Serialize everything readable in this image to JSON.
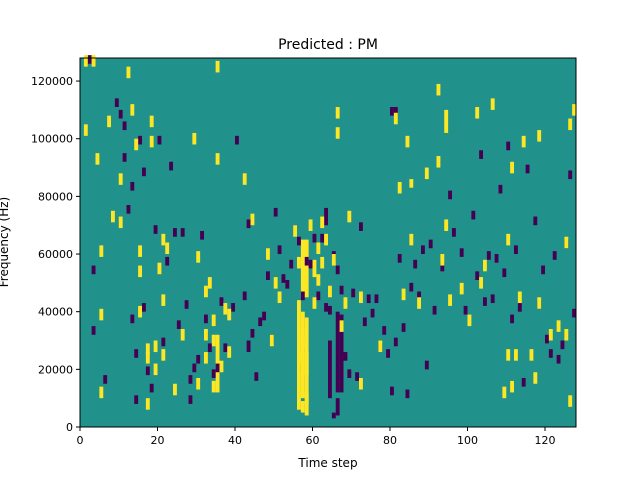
{
  "chart_data": {
    "type": "heatmap",
    "title": "Predicted : PM",
    "xlabel": "Time step",
    "ylabel": "Frequency (Hz)",
    "xlim": [
      0,
      128
    ],
    "ylim": [
      0,
      128000
    ],
    "x_ticks": [
      0,
      20,
      40,
      60,
      80,
      100,
      120
    ],
    "y_ticks": [
      0,
      20000,
      40000,
      60000,
      80000,
      100000,
      120000
    ],
    "x_tick_labels": [
      "0",
      "20",
      "40",
      "60",
      "80",
      "100",
      "120"
    ],
    "y_tick_labels": [
      "0",
      "20000",
      "40000",
      "60000",
      "80000",
      "100000",
      "120000"
    ],
    "background_value": 0,
    "value_colors": {
      "-1": "#440154",
      "0": "#21918c",
      "1": "#fde725"
    },
    "cell_height_hz": 1000,
    "high_cells": [
      [
        1,
        125
      ],
      [
        1,
        101
      ],
      [
        3,
        125
      ],
      [
        4,
        91
      ],
      [
        5,
        59
      ],
      [
        5,
        37
      ],
      [
        5,
        10
      ],
      [
        7,
        104
      ],
      [
        8,
        71
      ],
      [
        10,
        69
      ],
      [
        10,
        84
      ],
      [
        12,
        121
      ],
      [
        13,
        108
      ],
      [
        14,
        96
      ],
      [
        15,
        59
      ],
      [
        15,
        52
      ],
      [
        15,
        38
      ],
      [
        17,
        25
      ],
      [
        17,
        6
      ],
      [
        17,
        22
      ],
      [
        18,
        104
      ],
      [
        18,
        97
      ],
      [
        19,
        26
      ],
      [
        19,
        18
      ],
      [
        20,
        53
      ],
      [
        21,
        23
      ],
      [
        21,
        63
      ],
      [
        21,
        42
      ],
      [
        22,
        60
      ],
      [
        24,
        11
      ],
      [
        26,
        30
      ],
      [
        29,
        98
      ],
      [
        30,
        57
      ],
      [
        30,
        13
      ],
      [
        32,
        22
      ],
      [
        32,
        30
      ],
      [
        32,
        45
      ],
      [
        33,
        48
      ],
      [
        34,
        35
      ],
      [
        34,
        12
      ],
      [
        35,
        123
      ],
      [
        35,
        91
      ],
      [
        36,
        19
      ],
      [
        37,
        39
      ],
      [
        38,
        37
      ],
      [
        38,
        24
      ],
      [
        42,
        84
      ],
      [
        44,
        70
      ],
      [
        48,
        58
      ],
      [
        49,
        28
      ],
      [
        50,
        48
      ],
      [
        51,
        43
      ],
      [
        55,
        66
      ],
      [
        56,
        55
      ],
      [
        56,
        22
      ],
      [
        57,
        5
      ],
      [
        57,
        30
      ],
      [
        57,
        27
      ],
      [
        58,
        18
      ],
      [
        58,
        8
      ],
      [
        58,
        22
      ],
      [
        59,
        68
      ],
      [
        60,
        41
      ],
      [
        61,
        49
      ],
      [
        62,
        55
      ],
      [
        62,
        69
      ],
      [
        63,
        63
      ],
      [
        64,
        45
      ],
      [
        65,
        56
      ],
      [
        66,
        100
      ],
      [
        66,
        107
      ],
      [
        67,
        33
      ],
      [
        68,
        41
      ],
      [
        69,
        71
      ],
      [
        72,
        13
      ],
      [
        72,
        43
      ],
      [
        77,
        26
      ],
      [
        81,
        105
      ],
      [
        82,
        81
      ],
      [
        83,
        44
      ],
      [
        84,
        97
      ],
      [
        85,
        63
      ],
      [
        87,
        41
      ],
      [
        89,
        86
      ],
      [
        92,
        90
      ],
      [
        92,
        115
      ],
      [
        93,
        56
      ],
      [
        94,
        68
      ],
      [
        95,
        42
      ],
      [
        98,
        46
      ],
      [
        100,
        35
      ],
      [
        102,
        107
      ],
      [
        103,
        48
      ],
      [
        104,
        54
      ],
      [
        106,
        110
      ],
      [
        109,
        10
      ],
      [
        110,
        23
      ],
      [
        110,
        63
      ],
      [
        111,
        12
      ],
      [
        111,
        88
      ],
      [
        112,
        23
      ],
      [
        113,
        43
      ],
      [
        114,
        97
      ],
      [
        116,
        23
      ],
      [
        117,
        15
      ],
      [
        118,
        41
      ],
      [
        118,
        99
      ],
      [
        121,
        30
      ],
      [
        123,
        33
      ],
      [
        125,
        30
      ],
      [
        125,
        62
      ],
      [
        126,
        7
      ],
      [
        126,
        103
      ],
      [
        127,
        108
      ]
    ],
    "low_cells": [
      [
        2,
        126
      ],
      [
        3,
        53
      ],
      [
        3,
        32
      ],
      [
        6,
        15
      ],
      [
        9,
        111
      ],
      [
        10,
        107
      ],
      [
        11,
        103
      ],
      [
        11,
        92
      ],
      [
        12,
        74
      ],
      [
        13,
        82
      ],
      [
        13,
        36
      ],
      [
        14,
        8
      ],
      [
        14,
        24
      ],
      [
        15,
        98
      ],
      [
        16,
        87
      ],
      [
        16,
        40
      ],
      [
        17,
        18
      ],
      [
        18,
        12
      ],
      [
        19,
        67
      ],
      [
        20,
        98
      ],
      [
        21,
        28
      ],
      [
        22,
        56
      ],
      [
        23,
        89
      ],
      [
        24,
        66
      ],
      [
        25,
        34
      ],
      [
        26,
        66
      ],
      [
        27,
        41
      ],
      [
        28,
        8
      ],
      [
        28,
        15
      ],
      [
        29,
        19
      ],
      [
        30,
        22
      ],
      [
        31,
        65
      ],
      [
        32,
        36
      ],
      [
        33,
        26
      ],
      [
        34,
        17
      ],
      [
        35,
        19
      ],
      [
        36,
        42
      ],
      [
        37,
        26
      ],
      [
        39,
        40
      ],
      [
        40,
        98
      ],
      [
        42,
        44
      ],
      [
        43,
        69
      ],
      [
        44,
        31
      ],
      [
        45,
        16
      ],
      [
        46,
        35
      ],
      [
        47,
        37
      ],
      [
        48,
        51
      ],
      [
        49,
        29
      ],
      [
        50,
        73
      ],
      [
        51,
        60
      ],
      [
        52,
        50
      ],
      [
        53,
        48
      ],
      [
        54,
        55
      ],
      [
        55,
        67
      ],
      [
        56,
        63
      ],
      [
        57,
        44
      ],
      [
        58,
        56
      ],
      [
        59,
        55
      ],
      [
        60,
        64
      ],
      [
        61,
        44
      ],
      [
        62,
        64
      ],
      [
        63,
        40
      ],
      [
        64,
        39
      ],
      [
        65,
        58
      ],
      [
        66,
        53
      ],
      [
        67,
        46
      ],
      [
        68,
        23
      ],
      [
        69,
        17
      ],
      [
        70,
        45
      ],
      [
        71,
        16
      ],
      [
        72,
        68
      ],
      [
        73,
        35
      ],
      [
        74,
        43
      ],
      [
        75,
        38
      ],
      [
        76,
        43
      ],
      [
        77,
        26
      ],
      [
        78,
        32
      ],
      [
        79,
        24
      ],
      [
        80,
        11
      ],
      [
        81,
        28
      ],
      [
        82,
        57
      ],
      [
        83,
        33
      ],
      [
        84,
        10
      ],
      [
        85,
        47
      ],
      [
        86,
        55
      ],
      [
        87,
        44
      ],
      [
        88,
        60
      ],
      [
        89,
        20
      ],
      [
        90,
        62
      ],
      [
        91,
        39
      ],
      [
        93,
        54
      ],
      [
        95,
        79
      ],
      [
        96,
        66
      ],
      [
        98,
        59
      ],
      [
        99,
        39
      ],
      [
        101,
        72
      ],
      [
        102,
        51
      ],
      [
        103,
        93
      ],
      [
        104,
        42
      ],
      [
        105,
        58
      ],
      [
        106,
        43
      ],
      [
        107,
        57
      ],
      [
        108,
        81
      ],
      [
        109,
        52
      ],
      [
        110,
        96
      ],
      [
        111,
        36
      ],
      [
        112,
        60
      ],
      [
        113,
        40
      ],
      [
        114,
        14
      ],
      [
        115,
        88
      ],
      [
        117,
        70
      ],
      [
        118,
        41
      ],
      [
        119,
        53
      ],
      [
        120,
        29
      ],
      [
        121,
        24
      ],
      [
        122,
        58
      ],
      [
        123,
        22
      ],
      [
        124,
        27
      ],
      [
        125,
        62
      ],
      [
        126,
        86
      ],
      [
        127,
        38
      ]
    ],
    "high_blocks": [
      [
        56,
        57,
        6,
        44
      ],
      [
        57,
        58,
        10,
        40
      ],
      [
        58,
        59,
        4,
        38
      ],
      [
        57,
        59,
        45,
        65
      ],
      [
        60,
        61,
        52,
        58
      ],
      [
        61,
        62,
        60,
        64
      ],
      [
        34,
        35,
        32,
        28
      ],
      [
        35,
        36,
        12,
        32
      ],
      [
        94,
        95,
        102,
        110
      ],
      [
        85,
        86,
        86,
        83
      ]
    ],
    "low_blocks": [
      [
        66,
        67,
        12,
        40
      ],
      [
        67,
        68,
        12,
        33
      ],
      [
        67,
        68,
        34,
        39
      ],
      [
        66,
        67,
        4,
        10
      ],
      [
        56,
        57,
        19,
        25
      ],
      [
        65,
        66,
        3,
        5
      ],
      [
        64,
        65,
        10,
        30
      ],
      [
        81,
        82,
        108,
        111
      ],
      [
        80,
        81,
        108,
        111
      ],
      [
        43,
        44,
        26,
        30
      ],
      [
        63,
        64,
        70,
        76
      ]
    ]
  }
}
